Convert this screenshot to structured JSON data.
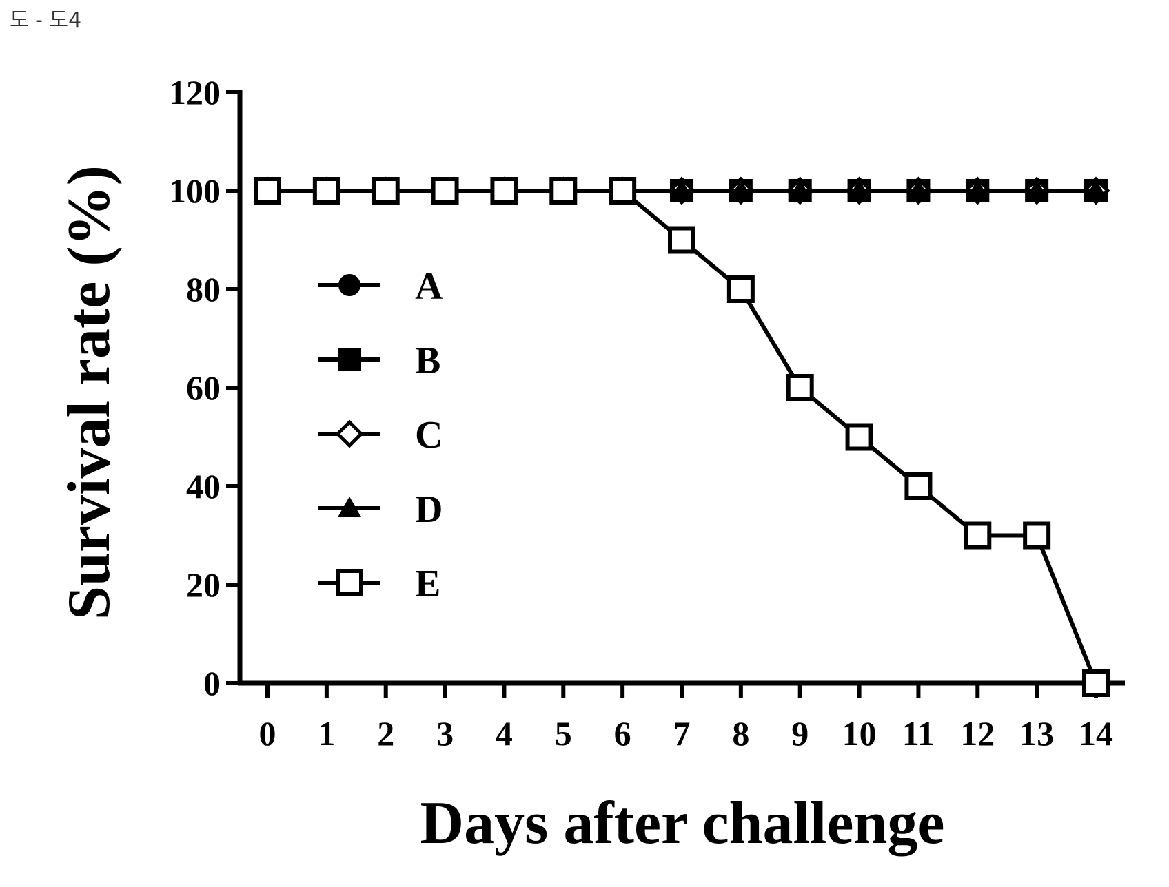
{
  "figure_label": "도 - 도4",
  "chart_data": {
    "type": "line",
    "title": "",
    "xlabel": "Days after challenge",
    "ylabel": "Survival rate (%)",
    "x": [
      0,
      1,
      2,
      3,
      4,
      5,
      6,
      7,
      8,
      9,
      10,
      11,
      12,
      13,
      14
    ],
    "xlim": [
      0,
      14
    ],
    "ylim": [
      0,
      120
    ],
    "yticks": [
      0,
      20,
      40,
      60,
      80,
      100,
      120
    ],
    "grid": false,
    "legend_position": "left",
    "series": [
      {
        "name": "A",
        "marker": "filled-circle",
        "values": [
          100,
          100,
          100,
          100,
          100,
          100,
          100,
          100,
          100,
          100,
          100,
          100,
          100,
          100,
          100
        ]
      },
      {
        "name": "B",
        "marker": "filled-square",
        "values": [
          100,
          100,
          100,
          100,
          100,
          100,
          100,
          100,
          100,
          100,
          100,
          100,
          100,
          100,
          100
        ]
      },
      {
        "name": "C",
        "marker": "open-diamond",
        "values": [
          100,
          100,
          100,
          100,
          100,
          100,
          100,
          100,
          100,
          100,
          100,
          100,
          100,
          100,
          100
        ]
      },
      {
        "name": "D",
        "marker": "filled-triangle",
        "values": [
          100,
          100,
          100,
          100,
          100,
          100,
          100,
          100,
          100,
          100,
          100,
          100,
          100,
          100,
          100
        ]
      },
      {
        "name": "E",
        "marker": "open-square",
        "values": [
          100,
          100,
          100,
          100,
          100,
          100,
          100,
          90,
          80,
          60,
          50,
          40,
          30,
          30,
          0
        ]
      }
    ],
    "colors": {
      "line": "#000000"
    }
  }
}
